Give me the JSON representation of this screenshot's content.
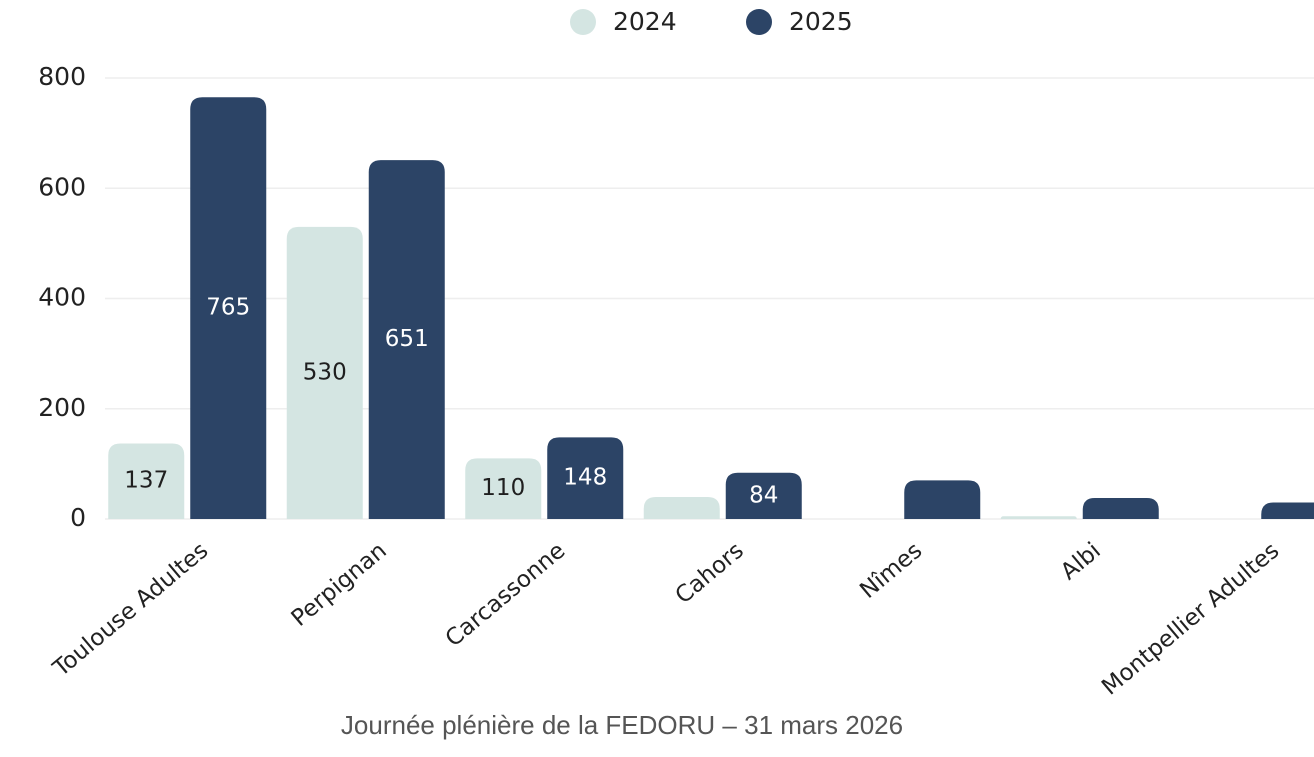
{
  "chart_data": {
    "type": "bar",
    "categories": [
      "Toulouse Adultes",
      "Perpignan",
      "Carcassonne",
      "Cahors",
      "Nîmes",
      "Albi",
      "Montpellier Adultes"
    ],
    "series": [
      {
        "name": "2024",
        "color": "#d4e5e2",
        "label_color": "#1f1f1f",
        "values": [
          137,
          530,
          110,
          40,
          0,
          5,
          0
        ],
        "value_labels": [
          "137",
          "530",
          "110",
          null,
          null,
          null,
          null
        ]
      },
      {
        "name": "2025",
        "color": "#2c4466",
        "label_color": "#ffffff",
        "values": [
          765,
          651,
          148,
          84,
          70,
          38,
          30
        ],
        "value_labels": [
          "765",
          "651",
          "148",
          "84",
          null,
          null,
          null
        ]
      }
    ],
    "ylim": [
      0,
      800
    ],
    "yticks": [
      0,
      200,
      400,
      600,
      800
    ],
    "grid": true,
    "legend": "top"
  },
  "footer": "Journée plénière de la FEDORU – 31 mars 2026"
}
